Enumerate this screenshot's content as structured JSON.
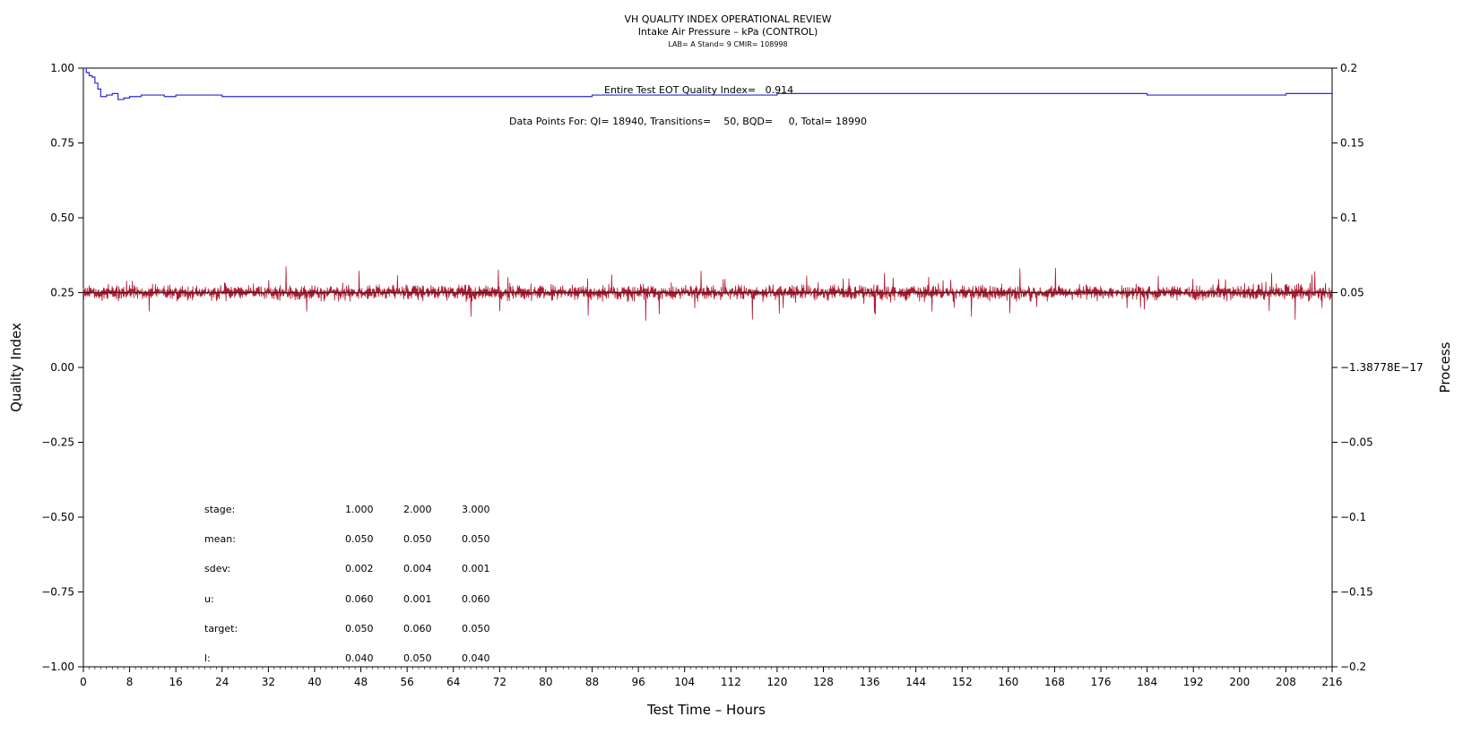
{
  "chart_data": {
    "type": "line",
    "title": "VH QUALITY INDEX OPERATIONAL REVIEW",
    "subtitle": "Intake Air Pressure – kPa (CONTROL)",
    "subsubtitle": "LAB= A Stand= 9 CMIR= 108998",
    "xlabel": "Test Time – Hours",
    "ylabel_left": "Quality Index",
    "ylabel_right": "Process",
    "xlim": [
      0,
      216
    ],
    "ylim_left": [
      -1.0,
      1.0
    ],
    "ylim_right": [
      -0.2,
      0.2
    ],
    "x_ticks": [
      "0",
      "8",
      "16",
      "24",
      "32",
      "40",
      "48",
      "56",
      "64",
      "72",
      "80",
      "88",
      "96",
      "104",
      "112",
      "120",
      "128",
      "136",
      "144",
      "152",
      "160",
      "168",
      "176",
      "184",
      "192",
      "200",
      "208",
      "216"
    ],
    "y_left_ticks": [
      "1.00",
      "0.75",
      "0.50",
      "0.25",
      "0.00",
      "−0.25",
      "−0.50",
      "−0.75",
      "−1.00"
    ],
    "y_right_ticks": [
      "0.2",
      "0.15",
      "0.1",
      "0.05",
      "−1.38778E−17",
      "−0.05",
      "−0.1",
      "−0.15",
      "−0.2"
    ],
    "annotations": {
      "eot": "Entire Test EOT Quality Index=   0.914",
      "points": "Data Points For: QI= 18940, Transitions=    50, BQD=     0, Total= 18990"
    },
    "stats": {
      "labels": [
        "stage:",
        "mean:",
        "sdev:",
        "u:",
        "target:",
        "l:"
      ],
      "columns": [
        [
          "1.000",
          "0.050",
          "0.002",
          "0.060",
          "0.050",
          "0.040"
        ],
        [
          "2.000",
          "0.050",
          "0.004",
          "0.001",
          "0.060",
          "0.050"
        ],
        [
          "3.000",
          "0.050",
          "0.001",
          "0.060",
          "0.050",
          "0.040"
        ]
      ]
    },
    "series": [
      {
        "axis": "left",
        "color": "#2b2bd8",
        "style": "step",
        "x": [
          0,
          0.5,
          1,
          1.5,
          2,
          2.5,
          3,
          4,
          5,
          6,
          7,
          8,
          10,
          12,
          14,
          16,
          20,
          24,
          32,
          40,
          48,
          56,
          64,
          72,
          80,
          88,
          96,
          104,
          112,
          120,
          128,
          136,
          144,
          152,
          160,
          168,
          176,
          184,
          192,
          200,
          208,
          216
        ],
        "values": [
          1.0,
          0.985,
          0.975,
          0.97,
          0.95,
          0.93,
          0.905,
          0.91,
          0.915,
          0.895,
          0.9,
          0.905,
          0.91,
          0.91,
          0.905,
          0.91,
          0.91,
          0.905,
          0.905,
          0.905,
          0.905,
          0.905,
          0.905,
          0.905,
          0.905,
          0.91,
          0.91,
          0.91,
          0.91,
          0.915,
          0.915,
          0.915,
          0.915,
          0.915,
          0.915,
          0.915,
          0.915,
          0.91,
          0.91,
          0.91,
          0.915,
          0.914
        ]
      },
      {
        "axis": "right",
        "color": "#b01a30",
        "style": "noise",
        "center": 0.05,
        "typical_amplitude": 0.004,
        "spike_amplitude": 0.02,
        "x_range": [
          0,
          216
        ]
      }
    ],
    "grid": false,
    "legend": "none"
  }
}
